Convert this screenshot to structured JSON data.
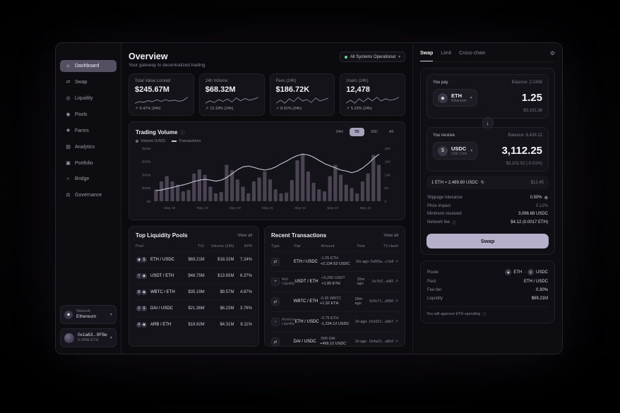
{
  "icons": {
    "trend_up": "↗",
    "chevron_down": "▾",
    "external_link": "↗",
    "info": "ⓘ",
    "gear": "⚙",
    "refresh": "↻",
    "swap_type": "⇄",
    "add_type": "+",
    "remove_type": "−",
    "arrow_down": "↓",
    "route_sep": "›"
  },
  "tokens": {
    "ETH": "◆",
    "USDC": "$",
    "USDT": "T",
    "WBTC": "B",
    "DAI": "D",
    "ARB": "A"
  },
  "sidebar": {
    "items": [
      {
        "label": "Dashboard",
        "icon": "dashboard",
        "glyph": "⌂",
        "active": true
      },
      {
        "label": "Swap",
        "icon": "swap",
        "glyph": "⇄",
        "active": false
      },
      {
        "label": "Liquidity",
        "icon": "liquidity",
        "glyph": "◎",
        "active": false
      },
      {
        "label": "Pools",
        "icon": "pools",
        "glyph": "◉",
        "active": false
      },
      {
        "label": "Farms",
        "icon": "farms",
        "glyph": "❖",
        "active": false
      },
      {
        "label": "Analytics",
        "icon": "analytics",
        "glyph": "▤",
        "active": false
      },
      {
        "label": "Portfolio",
        "icon": "portfolio",
        "glyph": "▣",
        "active": false
      },
      {
        "label": "Bridge",
        "icon": "bridge",
        "glyph": "∩",
        "active": false
      },
      {
        "label": "Governance",
        "icon": "governance",
        "glyph": "⚖",
        "active": false
      }
    ],
    "network": {
      "label": "Network",
      "value": "Ethereum"
    },
    "wallet": {
      "address": "0x1a63...9F8e",
      "balance": "0.2456 ETH"
    }
  },
  "header": {
    "title": "Overview",
    "subtitle": "Your gateway to decentralized trading",
    "status": "All Systems Operational"
  },
  "stats": [
    {
      "label": "Total Value Locked",
      "value": "$245.67M",
      "change": "6.47% (24h)",
      "spark": [
        4,
        5,
        4.6,
        5.6,
        5,
        6.2,
        5.2,
        6.2,
        5.4,
        6,
        5.2,
        5.8,
        7.8
      ]
    },
    {
      "label": "24h Volume",
      "value": "$68.32M",
      "change": "12.18% (24h)",
      "spark": [
        4.6,
        5.4,
        4.8,
        5.8,
        5.2,
        6,
        5,
        6.4,
        5.4,
        6.2,
        5.6,
        6,
        6.6
      ]
    },
    {
      "label": "Fees (24h)",
      "value": "$186.72K",
      "change": "8.91% (24h)",
      "spark": [
        5,
        5.8,
        5,
        6.2,
        5.4,
        6.6,
        5.6,
        6,
        5.2,
        6.4,
        5.6,
        6,
        6.4
      ]
    },
    {
      "label": "Users (24h)",
      "value": "12,478",
      "change": "5.23% (24h)",
      "spark": [
        4.8,
        5.6,
        4.8,
        6,
        5.2,
        6.2,
        5.4,
        6.4,
        5.4,
        6,
        5.6,
        5.8,
        6.4
      ]
    }
  ],
  "chart": {
    "title": "Trading Volume",
    "ranges": [
      "24H",
      "7D",
      "30D",
      "All"
    ],
    "active_range": "7D",
    "legend": [
      {
        "name": "Volume (USD)",
        "swatch": "dot"
      },
      {
        "name": "Transactions",
        "swatch": "line"
      }
    ]
  },
  "chart_data": {
    "type": "bar",
    "title": "Trading Volume",
    "x_labels": [
      "May 18",
      "May 19",
      "May 20",
      "May 21",
      "May 22",
      "May 23",
      "May 24"
    ],
    "series": [
      {
        "name": "Volume (USD)",
        "type": "bar",
        "unit": "$M",
        "values": [
          18,
          30,
          38,
          30,
          25,
          15,
          17,
          42,
          48,
          40,
          22,
          12,
          14,
          55,
          47,
          33,
          22,
          12,
          30,
          36,
          45,
          33,
          18,
          12,
          13,
          32,
          62,
          72,
          45,
          28,
          18,
          15,
          38,
          55,
          40,
          25,
          20,
          12,
          30,
          42,
          70,
          55
        ]
      },
      {
        "name": "Transactions",
        "type": "line",
        "unit": "K",
        "values": [
          4,
          4.3,
          4.8,
          5.2,
          5.8,
          6.2,
          6.8,
          7.5,
          8,
          8.3,
          8,
          7.6,
          8,
          9,
          10.5,
          12,
          13,
          13.3,
          12.8,
          12.2,
          11.8,
          12.2,
          13,
          14.2,
          15.2,
          16.4,
          17.3,
          17.8,
          17.5,
          16.6,
          15.4,
          14.2,
          13.4,
          12.6,
          11.8,
          11.4,
          10.8,
          11.4,
          12.6,
          14.2,
          16.2,
          17.8
        ]
      }
    ],
    "y_left": {
      "ticks": [
        "$0",
        "$20M",
        "$40M",
        "$60M",
        "$80M"
      ],
      "min": 0,
      "max": 80
    },
    "y_right": {
      "ticks": [
        "0",
        "5K",
        "10K",
        "15K",
        "20K"
      ],
      "min": 0,
      "max": 20
    },
    "grid": false,
    "legend_position": "top-left"
  },
  "pools": {
    "title": "Top Liquidity Pools",
    "view_all": "View all",
    "headers": [
      "Pool",
      "TVL",
      "Volume (24h)",
      "APR"
    ],
    "rows": [
      {
        "pair": "ETH / USDC",
        "tokens": [
          "ETH",
          "USDC"
        ],
        "tvl": "$69.21M",
        "volume": "$18.32M",
        "apr": "7.24%"
      },
      {
        "pair": "USDT / ETH",
        "tokens": [
          "USDT",
          "ETH"
        ],
        "tvl": "$48.75M",
        "volume": "$13.65M",
        "apr": "6.37%"
      },
      {
        "pair": "WBTC / ETH",
        "tokens": [
          "WBTC",
          "ETH"
        ],
        "tvl": "$35.19M",
        "volume": "$9.57M",
        "apr": "4.87%"
      },
      {
        "pair": "DAI / USDC",
        "tokens": [
          "DAI",
          "USDC"
        ],
        "tvl": "$21.36M",
        "volume": "$6.23M",
        "apr": "3.76%"
      },
      {
        "pair": "ARB / ETH",
        "tokens": [
          "ARB",
          "ETH"
        ],
        "tvl": "$18.92M",
        "volume": "$4.31M",
        "apr": "8.11%"
      }
    ]
  },
  "transactions": {
    "title": "Recent Transactions",
    "view_all": "View all",
    "headers": [
      "Type",
      "Pair",
      "Amount",
      "Time",
      "TX Hash"
    ],
    "rows": [
      {
        "type": "swap",
        "type_label": "",
        "pair": "ETH / USDC",
        "amount1": "-1.25 ETH",
        "amount2": "+2,134.52 USDC",
        "time": "2m ago",
        "hash": "0x8f3a...c7e8"
      },
      {
        "type": "add",
        "type_label": "Add Liquidity",
        "pair": "USDT / ETH",
        "amount1": "+5,200 USDT",
        "amount2": "+1.00 ETH",
        "time": "15m ago",
        "hash": "0x7b2...a4f2"
      },
      {
        "type": "swap",
        "type_label": "",
        "pair": "WBTC / ETH",
        "amount1": "-0.35 WBTC",
        "amount2": "+1.32 ETH",
        "time": "28m ago",
        "hash": "0x9c71...d990"
      },
      {
        "type": "remove",
        "type_label": "Remove Liquidity",
        "pair": "ETH / USDC",
        "amount1": "-0.75 ETH",
        "amount2": "-1,234.12 USDC",
        "time": "1h ago",
        "hash": "0x3d21...a8b7"
      },
      {
        "type": "swap",
        "type_label": "",
        "pair": "DAI / USDC",
        "amount1": "-500 DAI",
        "amount2": "+499.12 USDC",
        "time": "1h ago",
        "hash": "0x4a21...a8c0"
      }
    ]
  },
  "swap": {
    "tabs": [
      "Swap",
      "Limit",
      "Cross-chain"
    ],
    "active_tab": "Swap",
    "pay": {
      "label": "You pay",
      "balance": "Balance: 2.2456",
      "token": "ETH",
      "token_name": "Ethereum",
      "amount": "1.25",
      "usd": "$3,102.36"
    },
    "receive": {
      "label": "You receive",
      "balance": "Balance: 6,438.12",
      "token": "USDC",
      "token_name": "USD Coin",
      "amount": "3,112.25",
      "usd": "$3,102.02 (-0.01%)"
    },
    "rate": {
      "text": "1 ETH = 2,489.80 USDC",
      "fee": "$12.45"
    },
    "details": [
      {
        "label": "Slippage tolerance",
        "value": "0.50%",
        "value_icon": "gear",
        "dim": false
      },
      {
        "label": "Price impact",
        "value": "0.12%",
        "dim": true
      },
      {
        "label": "Minimum received",
        "value": "3,096.68 USDC",
        "dim": false
      },
      {
        "label": "Network fee",
        "value": "$4.12 (0.0017 ETH)",
        "label_icon": "info",
        "dim": false
      }
    ],
    "button": "Swap",
    "route": {
      "label": "Route",
      "from": "ETH",
      "to": "USDC",
      "rows": [
        {
          "label": "Pool",
          "value": "ETH / USDC"
        },
        {
          "label": "Fee tier",
          "value": "0.30%"
        },
        {
          "label": "Liquidity",
          "value": "$69.21M"
        }
      ],
      "approve": "You will approve ETH spending"
    }
  }
}
